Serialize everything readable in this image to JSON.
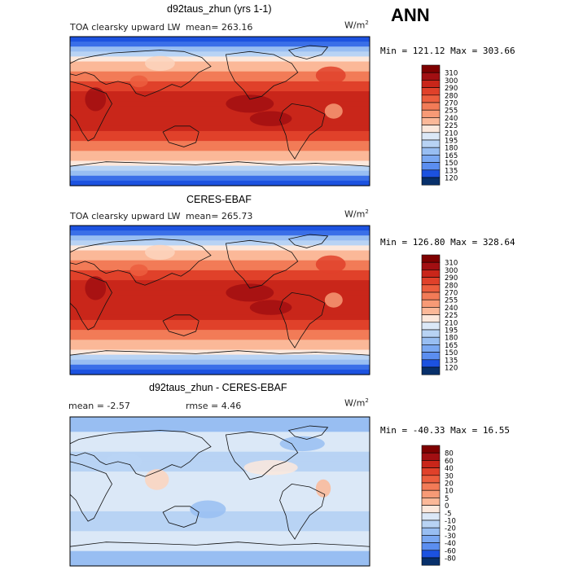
{
  "season": "ANN",
  "colors": {
    "abs_levels": [
      "#08306b",
      "#0033c8",
      "#1c52e0",
      "#3a6fe8",
      "#5b8ef0",
      "#7aa8f2",
      "#98bef2",
      "#b8d3f4",
      "#dbe8f7",
      "#fce8dc",
      "#fbd3bd",
      "#fbb898",
      "#f79a76",
      "#f27b57",
      "#ec5e3e",
      "#e0412a",
      "#c9261a",
      "#a20f12",
      "#7f0000"
    ],
    "diff_levels": [
      "#08306b",
      "#0033c8",
      "#1c52e0",
      "#3a6fe8",
      "#5b8ef0",
      "#7aa8f2",
      "#98bef2",
      "#b8d3f4",
      "#dbe8f7",
      "#fce8dc",
      "#fbd3bd",
      "#fbb898",
      "#f79a76",
      "#f27b57",
      "#ec5e3e",
      "#e0412a",
      "#c9261a",
      "#a20f12",
      "#7f0000"
    ]
  },
  "chart_data": [
    {
      "type": "heatmap",
      "title": "d92taus_zhun (yrs 1-1)",
      "subtitle": "TOA clearsky upward LW",
      "stat_text": "mean= 263.16",
      "units_base": "W/m",
      "units_exp": "2",
      "min_max_text": "Min = 121.12 Max = 303.66",
      "min": 121.12,
      "max": 303.66,
      "mean": 263.16,
      "colorbar_levels": [
        "310",
        "300",
        "290",
        "280",
        "270",
        "255",
        "240",
        "225",
        "210",
        "195",
        "180",
        "165",
        "150",
        "135",
        "120"
      ]
    },
    {
      "type": "heatmap",
      "title": "CERES-EBAF",
      "subtitle": "TOA clearsky upward LW",
      "stat_text": "mean= 265.73",
      "units_base": "W/m",
      "units_exp": "2",
      "min_max_text": "Min = 126.80 Max = 328.64",
      "min": 126.8,
      "max": 328.64,
      "mean": 265.73,
      "colorbar_levels": [
        "310",
        "300",
        "290",
        "280",
        "270",
        "255",
        "240",
        "225",
        "210",
        "195",
        "180",
        "165",
        "150",
        "135",
        "120"
      ]
    },
    {
      "type": "heatmap",
      "title": "d92taus_zhun - CERES-EBAF",
      "subtitle": "",
      "stat_text": "mean =   -2.57",
      "rmse_text": "rmse =    4.46",
      "units_base": "W/m",
      "units_exp": "2",
      "min_max_text": "Min = -40.33 Max =  16.55",
      "min": -40.33,
      "max": 16.55,
      "mean": -2.57,
      "rmse": 4.46,
      "colorbar_levels": [
        "80",
        "60",
        "40",
        "30",
        "20",
        "10",
        "5",
        "0",
        "-5",
        "-10",
        "-20",
        "-30",
        "-40",
        "-60",
        "-80"
      ]
    }
  ]
}
